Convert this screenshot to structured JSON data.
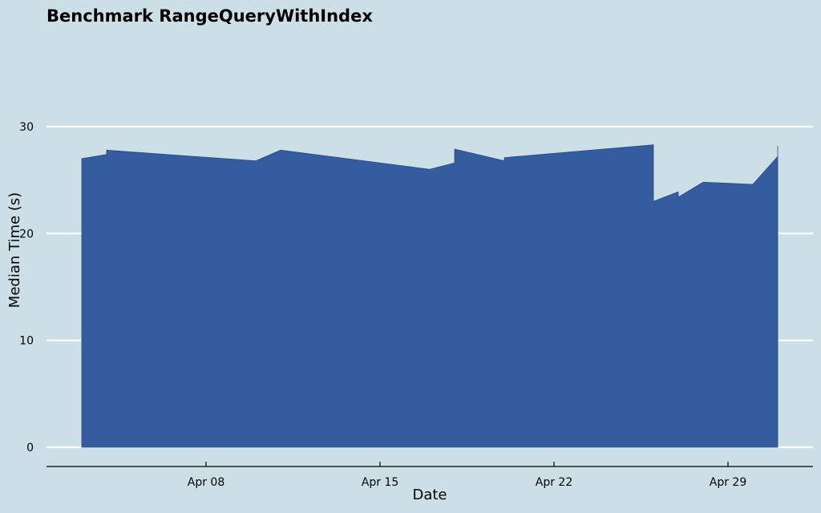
{
  "chart_data": {
    "type": "area",
    "title": "Benchmark RangeQueryWithIndex",
    "xlabel": "Date",
    "ylabel": "Median Time (s)",
    "ylim": [
      0,
      30
    ],
    "yticks": [
      0,
      10,
      20,
      30
    ],
    "xtick_labels": [
      "Apr 08",
      "Apr 15",
      "Apr 22",
      "Apr 29"
    ],
    "xtick_dates": [
      "2024-04-08",
      "2024-04-15",
      "2024-04-22",
      "2024-04-29"
    ],
    "xlim": [
      "2024-04-01",
      "2024-04-30"
    ],
    "grid": "horizontal",
    "series": [
      {
        "color": "#355c9e",
        "points": [
          {
            "x": "2024-04-03 00:00",
            "y": 0
          },
          {
            "x": "2024-04-03 00:00",
            "y": 27.0
          },
          {
            "x": "2024-04-04 00:00",
            "y": 27.4
          },
          {
            "x": "2024-04-04 00:00",
            "y": 27.8
          },
          {
            "x": "2024-04-10 00:00",
            "y": 26.8
          },
          {
            "x": "2024-04-11 00:00",
            "y": 27.8
          },
          {
            "x": "2024-04-17 00:00",
            "y": 26.0
          },
          {
            "x": "2024-04-18 00:00",
            "y": 26.6
          },
          {
            "x": "2024-04-18 00:00",
            "y": 27.9
          },
          {
            "x": "2024-04-20 00:00",
            "y": 26.8
          },
          {
            "x": "2024-04-20 00:00",
            "y": 27.1
          },
          {
            "x": "2024-04-26 00:00",
            "y": 28.3
          },
          {
            "x": "2024-04-26 00:00",
            "y": 23.0
          },
          {
            "x": "2024-04-27 00:00",
            "y": 23.9
          },
          {
            "x": "2024-04-27 00:00",
            "y": 23.4
          },
          {
            "x": "2024-04-28 00:00",
            "y": 24.8
          },
          {
            "x": "2024-04-30 00:00",
            "y": 24.6
          },
          {
            "x": "2024-05-01 00:00",
            "y": 27.2
          },
          {
            "x": "2024-05-01 00:00",
            "y": 28.2
          },
          {
            "x": "2024-05-01 00:00",
            "y": 0
          }
        ]
      }
    ]
  }
}
